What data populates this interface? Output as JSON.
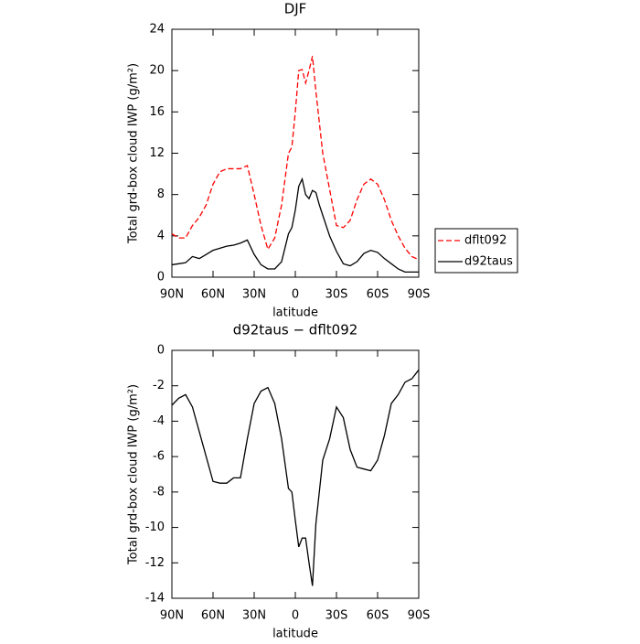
{
  "chart_data": [
    {
      "type": "line",
      "title": "DJF",
      "xlabel": "latitude",
      "ylabel": "Total grd-box cloud IWP (g/m²)",
      "x": [
        90,
        85,
        80,
        75,
        70,
        65,
        60,
        55,
        50,
        45,
        40,
        35,
        30,
        25,
        20,
        15,
        10,
        5,
        2.5,
        0,
        -2.5,
        -5,
        -7.5,
        -10,
        -12.5,
        -15,
        -17.5,
        -20,
        -25,
        -30,
        -35,
        -40,
        -45,
        -50,
        -55,
        -60,
        -65,
        -70,
        -75,
        -80,
        -85,
        -90
      ],
      "xlim": [
        90,
        -90
      ],
      "xticks": [
        {
          "value": 90,
          "label": "90N"
        },
        {
          "value": 60,
          "label": "60N"
        },
        {
          "value": 30,
          "label": "30N"
        },
        0,
        {
          "value": -30,
          "label": "30S"
        },
        {
          "value": -60,
          "label": "60S"
        },
        {
          "value": -90,
          "label": "90S"
        }
      ],
      "ylim": [
        0,
        24
      ],
      "yticks": [
        0,
        4,
        8,
        12,
        16,
        20,
        24
      ],
      "legend": "right",
      "series": [
        {
          "name": "dflt092",
          "color": "#ff0000",
          "dashed": true,
          "values": [
            4.2,
            3.8,
            3.8,
            5,
            5.8,
            7,
            9,
            10.2,
            10.5,
            10.5,
            10.5,
            10.8,
            8,
            5,
            2.7,
            3.8,
            7,
            12,
            12.6,
            16,
            20,
            20.1,
            18.8,
            20,
            21.4,
            18,
            15,
            12,
            8.5,
            5,
            4.8,
            5.5,
            7.5,
            9,
            9.5,
            9,
            7.5,
            5.5,
            4,
            2.8,
            2,
            1.7
          ]
        },
        {
          "name": "d92taus",
          "color": "#000000",
          "dashed": false,
          "values": [
            1.2,
            1.3,
            1.4,
            2,
            1.8,
            2.2,
            2.6,
            2.8,
            3,
            3.1,
            3.3,
            3.6,
            2.2,
            1.2,
            0.8,
            0.8,
            1.5,
            4.2,
            4.8,
            6.5,
            8.8,
            9.5,
            8,
            7.6,
            8.4,
            8.2,
            7,
            6,
            4,
            2.5,
            1.3,
            1.1,
            1.5,
            2.3,
            2.6,
            2.4,
            1.8,
            1.3,
            0.8,
            0.5,
            0.5,
            0.5
          ]
        }
      ]
    },
    {
      "type": "line",
      "title": "d92taus − dflt092",
      "xlabel": "latitude",
      "ylabel": "Total grd-box cloud IWP (g/m²)",
      "x": [
        90,
        85,
        80,
        75,
        70,
        65,
        60,
        55,
        50,
        45,
        40,
        35,
        30,
        25,
        20,
        15,
        10,
        5,
        2.5,
        0,
        -2.5,
        -5,
        -7.5,
        -10,
        -12.5,
        -15,
        -17.5,
        -20,
        -25,
        -30,
        -35,
        -40,
        -45,
        -50,
        -55,
        -60,
        -65,
        -70,
        -75,
        -80,
        -85,
        -90
      ],
      "xlim": [
        90,
        -90
      ],
      "xticks": [
        {
          "value": 90,
          "label": "90N"
        },
        {
          "value": 60,
          "label": "60N"
        },
        {
          "value": 30,
          "label": "30N"
        },
        0,
        {
          "value": -30,
          "label": "30S"
        },
        {
          "value": -60,
          "label": "60S"
        },
        {
          "value": -90,
          "label": "90S"
        }
      ],
      "ylim": [
        -14,
        0
      ],
      "yticks": [
        -14,
        -12,
        -10,
        -8,
        -6,
        -4,
        -2,
        0
      ],
      "series": [
        {
          "color": "#000000",
          "dashed": false,
          "values": [
            -3.1,
            -2.7,
            -2.5,
            -3.2,
            -4.6,
            -6,
            -7.4,
            -7.5,
            -7.5,
            -7.2,
            -7.2,
            -5,
            -3,
            -2.3,
            -2.1,
            -3,
            -5,
            -7.8,
            -8,
            -9.6,
            -11.1,
            -10.6,
            -10.6,
            -12,
            -13.3,
            -9.8,
            -8,
            -6.2,
            -5,
            -3.2,
            -3.8,
            -5.6,
            -6.6,
            -6.7,
            -6.8,
            -6.2,
            -4.8,
            -3,
            -2.5,
            -1.8,
            -1.6,
            -1.1
          ]
        }
      ]
    }
  ]
}
